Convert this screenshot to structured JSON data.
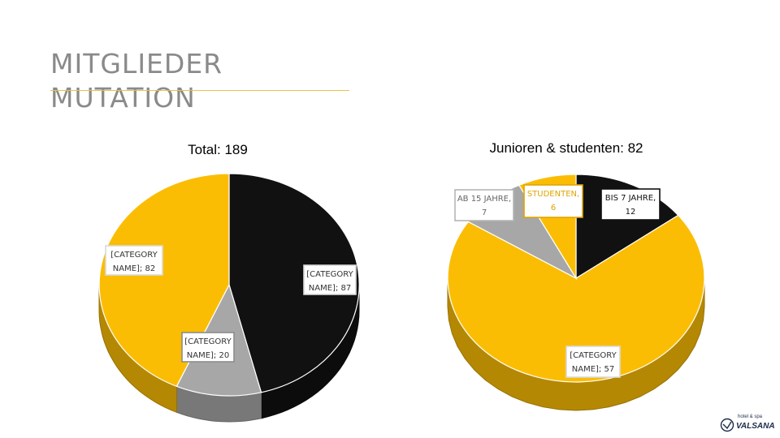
{
  "page": {
    "title_line1": "MITGLIEDER",
    "title_line2": "MUTATION"
  },
  "colors": {
    "yellow": "#fbbd04",
    "black": "#111111",
    "gray": "#a7a7a7",
    "title_gray": "#8a8a8a",
    "rule": "#e8c24a"
  },
  "logo": {
    "text": "VALSANA",
    "small_text": "hotel & spa",
    "icon": "valsana-logo-icon"
  },
  "chart_data": [
    {
      "type": "pie",
      "title": "Total: 189",
      "slices": [
        {
          "label": "[CATEGORY NAME]; 87",
          "value": 87,
          "color": "#111111"
        },
        {
          "label": "[CATEGORY NAME]; 20",
          "value": 20,
          "color": "#a7a7a7"
        },
        {
          "label": "[CATEGORY NAME]; 82",
          "value": 82,
          "color": "#fbbd04"
        }
      ]
    },
    {
      "type": "pie",
      "title": "Junioren & studenten: 82",
      "slices": [
        {
          "label_lines": [
            "BIS 7 JAHRE,",
            "12"
          ],
          "value": 12,
          "color": "#111111"
        },
        {
          "label_lines": [
            "[CATEGORY",
            "NAME]; 57"
          ],
          "value": 57,
          "color": "#fbbd04"
        },
        {
          "label_lines": [
            "AB 15 JAHRE,",
            "7"
          ],
          "value": 7,
          "color": "#a7a7a7"
        },
        {
          "label_lines": [
            "STUDENTEN,",
            "6"
          ],
          "value": 6,
          "color": "#fbbd04"
        }
      ]
    }
  ]
}
